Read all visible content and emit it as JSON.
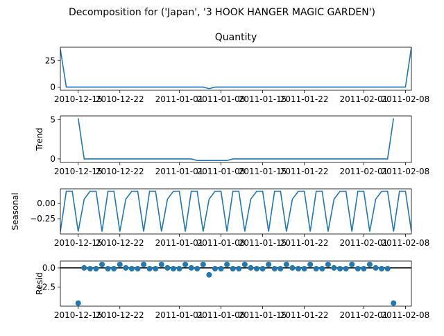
{
  "figure_title": "Decomposition for ('Japan', '3 HOOK HANGER MAGIC GARDEN')",
  "chart_data": [
    {
      "type": "line",
      "title": "Quantity",
      "ylabel": "",
      "xlim": [
        "2010-12-12",
        "2011-02-09"
      ],
      "ylim": [
        -3,
        38
      ],
      "yticks": [
        0,
        25
      ],
      "ytick_labels": [
        "0",
        "25"
      ],
      "xticks": [
        "2010-12-15",
        "2010-12-22",
        "2011-01-01",
        "2011-01-08",
        "2011-01-15",
        "2011-01-22",
        "2011-02-01",
        "2011-02-08"
      ],
      "xtick_labels": [
        "2010-12-15",
        "2010-12-22",
        "2011-01-01",
        "2011-01-08",
        "2011-01-15",
        "2011-01-22",
        "2011-02-01",
        "2011-02-08"
      ],
      "color": "#1f77b4",
      "points": [
        [
          "2010-12-12",
          36
        ],
        [
          "2010-12-13",
          0
        ],
        [
          "2011-01-05",
          0
        ],
        [
          "2011-01-06",
          -1.5
        ],
        [
          "2011-01-07",
          0
        ],
        [
          "2011-02-08",
          0
        ],
        [
          "2011-02-09",
          38
        ]
      ]
    },
    {
      "type": "line",
      "title": "",
      "ylabel": "Trend",
      "xlim": [
        "2010-12-12",
        "2011-02-09"
      ],
      "ylim": [
        -0.45,
        5.5
      ],
      "yticks": [
        0,
        5
      ],
      "ytick_labels": [
        "0",
        "5"
      ],
      "xticks": [
        "2010-12-15",
        "2010-12-22",
        "2011-01-01",
        "2011-01-08",
        "2011-01-15",
        "2011-01-22",
        "2011-02-01",
        "2011-02-08"
      ],
      "xtick_labels": [
        "2010-12-15",
        "2010-12-22",
        "2011-01-01",
        "2011-01-08",
        "2011-01-15",
        "2011-01-22",
        "2011-02-01",
        "2011-02-08"
      ],
      "color": "#1f77b4",
      "points": [
        [
          "2010-12-15",
          5.2
        ],
        [
          "2010-12-16",
          0
        ],
        [
          "2011-01-03",
          0
        ],
        [
          "2011-01-04",
          -0.2
        ],
        [
          "2011-01-09",
          -0.2
        ],
        [
          "2011-01-10",
          0
        ],
        [
          "2011-02-05",
          0
        ],
        [
          "2011-02-06",
          5.2
        ]
      ]
    },
    {
      "type": "line",
      "title": "",
      "ylabel": "Seasonal",
      "xlim": [
        "2010-12-12",
        "2011-02-09"
      ],
      "ylim": [
        -0.5,
        0.24
      ],
      "yticks": [
        0.0,
        -0.25
      ],
      "ytick_labels": [
        "0.00",
        "−0.25"
      ],
      "xticks": [
        "2010-12-15",
        "2010-12-22",
        "2011-01-01",
        "2011-01-08",
        "2011-01-15",
        "2011-01-22",
        "2011-02-01",
        "2011-02-08"
      ],
      "xtick_labels": [
        "2010-12-15",
        "2010-12-22",
        "2011-01-01",
        "2011-01-08",
        "2011-01-15",
        "2011-01-22",
        "2011-02-01",
        "2011-02-08"
      ],
      "color": "#1f77b4",
      "season_start": "2010-12-12",
      "period": 7,
      "season_values": [
        -0.46,
        0.2,
        0.2,
        -0.46,
        0.07,
        0.2,
        0.2
      ]
    },
    {
      "type": "scatter",
      "title": "",
      "ylabel": "Resid",
      "xlim": [
        "2010-12-12",
        "2011-02-09"
      ],
      "ylim": [
        -5.0,
        0.9
      ],
      "yticks": [
        0.0,
        -2.5
      ],
      "ytick_labels": [
        "0.0",
        "−2.5"
      ],
      "xticks": [
        "2010-12-15",
        "2010-12-22",
        "2011-01-01",
        "2011-01-08",
        "2011-01-15",
        "2011-01-22",
        "2011-02-01",
        "2011-02-08"
      ],
      "xtick_labels": [
        "2010-12-15",
        "2010-12-22",
        "2011-01-01",
        "2011-01-08",
        "2011-01-15",
        "2011-01-22",
        "2011-02-01",
        "2011-02-08"
      ],
      "color": "#1f77b4",
      "baseline": 0,
      "points": [
        [
          "2010-12-15",
          -4.6
        ],
        [
          "2010-12-16",
          0.0
        ],
        [
          "2010-12-17",
          -0.1
        ],
        [
          "2010-12-18",
          -0.1
        ],
        [
          "2010-12-19",
          0.45
        ],
        [
          "2010-12-20",
          -0.1
        ],
        [
          "2010-12-21",
          -0.1
        ],
        [
          "2010-12-22",
          0.45
        ],
        [
          "2010-12-23",
          0.0
        ],
        [
          "2010-12-24",
          -0.1
        ],
        [
          "2010-12-25",
          -0.1
        ],
        [
          "2010-12-26",
          0.45
        ],
        [
          "2010-12-27",
          -0.1
        ],
        [
          "2010-12-28",
          -0.1
        ],
        [
          "2010-12-29",
          0.45
        ],
        [
          "2010-12-30",
          0.0
        ],
        [
          "2010-12-31",
          -0.1
        ],
        [
          "2011-01-01",
          -0.1
        ],
        [
          "2011-01-02",
          0.45
        ],
        [
          "2011-01-03",
          0.0
        ],
        [
          "2011-01-04",
          -0.1
        ],
        [
          "2011-01-05",
          0.45
        ],
        [
          "2011-01-06",
          -0.9
        ],
        [
          "2011-01-07",
          -0.1
        ],
        [
          "2011-01-08",
          -0.1
        ],
        [
          "2011-01-09",
          0.45
        ],
        [
          "2011-01-10",
          -0.1
        ],
        [
          "2011-01-11",
          -0.1
        ],
        [
          "2011-01-12",
          0.45
        ],
        [
          "2011-01-13",
          0.0
        ],
        [
          "2011-01-14",
          -0.1
        ],
        [
          "2011-01-15",
          -0.1
        ],
        [
          "2011-01-16",
          0.45
        ],
        [
          "2011-01-17",
          -0.1
        ],
        [
          "2011-01-18",
          -0.1
        ],
        [
          "2011-01-19",
          0.45
        ],
        [
          "2011-01-20",
          0.0
        ],
        [
          "2011-01-21",
          -0.1
        ],
        [
          "2011-01-22",
          -0.1
        ],
        [
          "2011-01-23",
          0.45
        ],
        [
          "2011-01-24",
          -0.1
        ],
        [
          "2011-01-25",
          -0.1
        ],
        [
          "2011-01-26",
          0.45
        ],
        [
          "2011-01-27",
          0.0
        ],
        [
          "2011-01-28",
          -0.1
        ],
        [
          "2011-01-29",
          -0.1
        ],
        [
          "2011-01-30",
          0.45
        ],
        [
          "2011-01-31",
          -0.1
        ],
        [
          "2011-02-01",
          -0.1
        ],
        [
          "2011-02-02",
          0.45
        ],
        [
          "2011-02-03",
          0.0
        ],
        [
          "2011-02-04",
          -0.1
        ],
        [
          "2011-02-05",
          -0.1
        ],
        [
          "2011-02-06",
          -4.6
        ]
      ]
    }
  ]
}
